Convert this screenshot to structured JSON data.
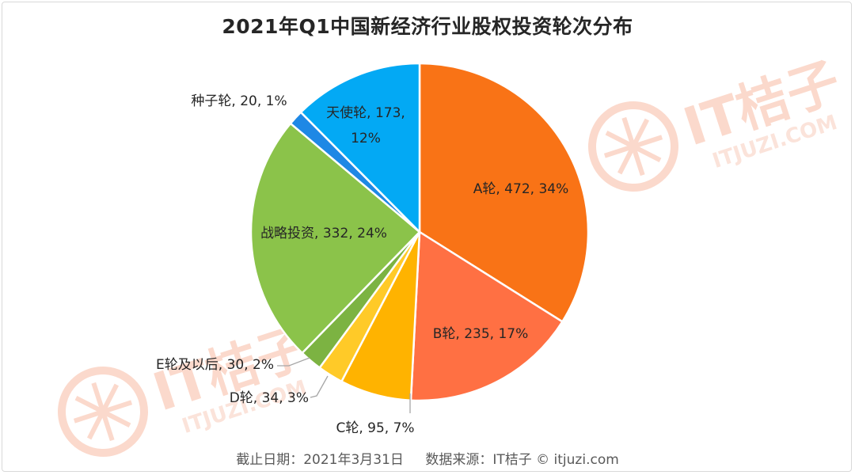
{
  "chart_data": {
    "type": "pie",
    "title": "2021年Q1中国新经济行业股权投资轮次分布",
    "start_angle_deg": 0,
    "direction": "clockwise",
    "slices": [
      {
        "label": "A轮, 472, 34%",
        "name": "A轮",
        "value": 472,
        "percent": 34,
        "color": "#f97316"
      },
      {
        "label": "B轮, 235, 17%",
        "name": "B轮",
        "value": 235,
        "percent": 17,
        "color": "#ff7043"
      },
      {
        "label": "C轮, 95, 7%",
        "name": "C轮",
        "value": 95,
        "percent": 7,
        "color": "#ffb300"
      },
      {
        "label": "D轮, 34, 3%",
        "name": "D轮",
        "value": 34,
        "percent": 3,
        "color": "#ffca28"
      },
      {
        "label": "E轮及以后, 30, 2%",
        "name": "E轮及以后",
        "value": 30,
        "percent": 2,
        "color": "#7cb342"
      },
      {
        "label": "战略投资, 332, 24%",
        "name": "战略投资",
        "value": 332,
        "percent": 24,
        "color": "#8bc34a"
      },
      {
        "label": "种子轮, 20, 1%",
        "name": "种子轮",
        "value": 20,
        "percent": 1,
        "color": "#1e88e5"
      },
      {
        "label": "天使轮, 173, 12%",
        "name": "天使轮",
        "value": 173,
        "percent": 12,
        "color": "#03a9f4"
      }
    ]
  },
  "footer": {
    "cutoff": "截止日期：2021年3月31日",
    "source": "数据来源：IT桔子 © itjuzi.com"
  },
  "watermark": {
    "brand": "IT桔子",
    "site": "ITJUZI.COM",
    "color": "#fbd9cc"
  }
}
